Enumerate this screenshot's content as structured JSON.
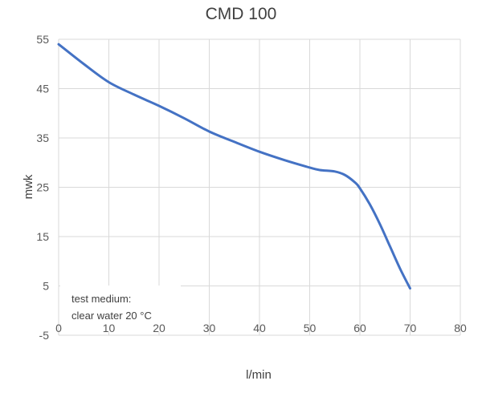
{
  "chart_data": {
    "type": "line",
    "title": "CMD 100",
    "xlabel": "l/min",
    "ylabel": "mwk",
    "xlim": [
      0,
      80
    ],
    "ylim": [
      -5,
      55
    ],
    "x_ticks": [
      "0",
      "10",
      "20",
      "30",
      "40",
      "50",
      "60",
      "70",
      "80"
    ],
    "y_ticks": [
      "55",
      "45",
      "35",
      "25",
      "15",
      "5",
      "-5"
    ],
    "grid": true,
    "line_color": "#4472c4",
    "series": [
      {
        "x": [
          0,
          5,
          10,
          15,
          20,
          25,
          30,
          35,
          40,
          45,
          50,
          52,
          55,
          57,
          59,
          60,
          62,
          64,
          66,
          68,
          70
        ],
        "values": [
          54,
          50,
          46.3,
          43.8,
          41.5,
          39,
          36.3,
          34.2,
          32.2,
          30.5,
          29,
          28.5,
          28.2,
          27.5,
          26,
          24.8,
          21.5,
          17.5,
          13,
          8.5,
          4.5
        ]
      }
    ],
    "annotation": {
      "line1": "test medium:",
      "line2": "clear water 20 °C"
    }
  }
}
